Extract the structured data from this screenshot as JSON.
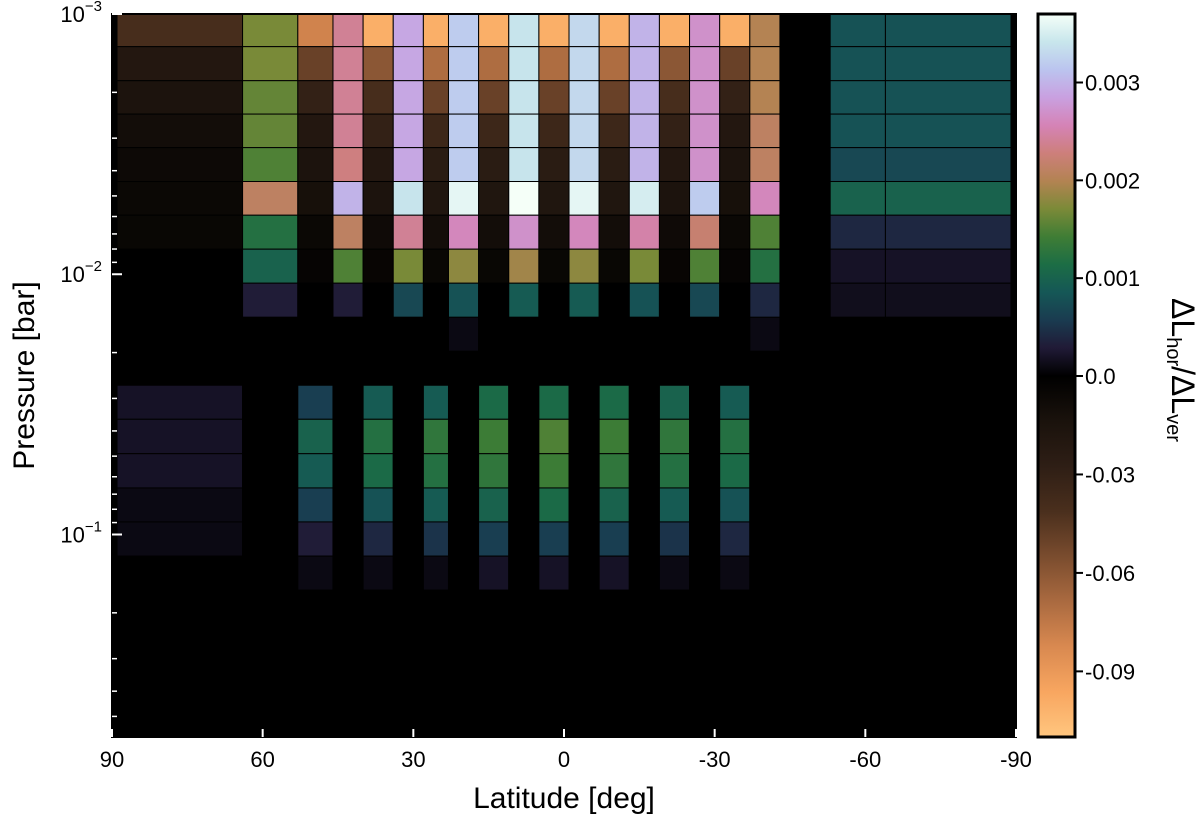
{
  "chart_data": {
    "type": "heatmap",
    "xlabel": "Latitude [deg]",
    "ylabel": "Pressure [bar]",
    "x_scale": "linear",
    "x_reversed": true,
    "xlim": [
      90,
      -90
    ],
    "xticks": [
      90,
      60,
      30,
      0,
      -30,
      -60,
      -90
    ],
    "xtick_labels": [
      "90",
      "60",
      "30",
      "0",
      "-30",
      "-60",
      "-90"
    ],
    "y_scale": "log",
    "y_inverted": true,
    "ylim": [
      0.001,
      0.6
    ],
    "yticks_major": [
      0.001,
      0.01,
      0.1
    ],
    "ytick_labels": [
      {
        "base": "10",
        "exp": "−3"
      },
      {
        "base": "10",
        "exp": "−2"
      },
      {
        "base": "10",
        "exp": "−1"
      }
    ],
    "pressure_rows": [
      0.00115,
      0.00155,
      0.0021,
      0.0028,
      0.0038,
      0.0051,
      0.0069,
      0.0093,
      0.0126,
      0.017,
      0.023,
      0.031,
      0.042,
      0.057,
      0.077,
      0.104,
      0.141,
      0.19,
      0.26,
      0.35,
      0.47
    ],
    "latitude_columns": [
      {
        "lat_from": 89,
        "lat_to": 64
      },
      {
        "lat_from": 64,
        "lat_to": 53
      },
      {
        "lat_from": 53,
        "lat_to": 46
      },
      {
        "lat_from": 46,
        "lat_to": 40
      },
      {
        "lat_from": 40,
        "lat_to": 34
      },
      {
        "lat_from": 34,
        "lat_to": 28
      },
      {
        "lat_from": 28,
        "lat_to": 23
      },
      {
        "lat_from": 23,
        "lat_to": 17
      },
      {
        "lat_from": 17,
        "lat_to": 11
      },
      {
        "lat_from": 11,
        "lat_to": 5
      },
      {
        "lat_from": 5,
        "lat_to": -1
      },
      {
        "lat_from": -1,
        "lat_to": -7
      },
      {
        "lat_from": -7,
        "lat_to": -13
      },
      {
        "lat_from": -13,
        "lat_to": -19
      },
      {
        "lat_from": -19,
        "lat_to": -25
      },
      {
        "lat_from": -25,
        "lat_to": -31
      },
      {
        "lat_from": -31,
        "lat_to": -37
      },
      {
        "lat_from": -37,
        "lat_to": -43
      },
      {
        "lat_from": -43,
        "lat_to": -53
      },
      {
        "lat_from": -53,
        "lat_to": -64
      },
      {
        "lat_from": -64,
        "lat_to": -89
      }
    ],
    "values": [
      [
        -0.04,
        0.0017,
        -0.08,
        0.0024,
        -0.1,
        0.0029,
        -0.1,
        0.0032,
        -0.1,
        0.0034,
        -0.1,
        0.0033,
        -0.1,
        0.003,
        -0.1,
        0.0027,
        -0.1,
        0.002,
        0.0,
        0.0008,
        0.0008
      ],
      [
        -0.02,
        0.0017,
        -0.05,
        0.0024,
        -0.06,
        0.0029,
        -0.07,
        0.0032,
        -0.07,
        0.0034,
        -0.07,
        0.0033,
        -0.07,
        0.003,
        -0.06,
        0.0027,
        -0.05,
        0.002,
        0.0,
        0.0008,
        0.0008
      ],
      [
        -0.015,
        0.0016,
        -0.03,
        0.0024,
        -0.04,
        0.0029,
        -0.05,
        0.0032,
        -0.05,
        0.0034,
        -0.05,
        0.0033,
        -0.05,
        0.003,
        -0.04,
        0.0027,
        -0.03,
        0.002,
        0.0,
        0.0008,
        0.0008
      ],
      [
        -0.01,
        0.0016,
        -0.02,
        0.0024,
        -0.03,
        0.0029,
        -0.035,
        0.0032,
        -0.035,
        0.0034,
        -0.035,
        0.0033,
        -0.035,
        0.003,
        -0.03,
        0.0027,
        -0.02,
        0.0021,
        0.0,
        0.0008,
        0.0008
      ],
      [
        -0.007,
        0.0015,
        -0.015,
        0.0023,
        -0.02,
        0.0029,
        -0.025,
        0.0032,
        -0.025,
        0.0034,
        -0.025,
        0.0033,
        -0.025,
        0.003,
        -0.02,
        0.0027,
        -0.015,
        0.0021,
        0.0,
        0.0007,
        0.0007
      ],
      [
        -0.006,
        0.0021,
        -0.012,
        0.003,
        -0.015,
        0.0034,
        -0.018,
        0.0036,
        -0.018,
        0.0037,
        -0.018,
        0.0036,
        -0.018,
        0.0035,
        -0.015,
        0.0032,
        -0.012,
        0.0026,
        0.0,
        0.001,
        0.001
      ],
      [
        -0.005,
        0.0012,
        -0.006,
        0.0021,
        -0.008,
        0.0024,
        -0.01,
        0.0026,
        -0.01,
        0.0027,
        -0.01,
        0.0026,
        -0.01,
        0.0025,
        -0.008,
        0.0022,
        -0.006,
        0.0015,
        0.0,
        0.0004,
        0.0004
      ],
      [
        0.0,
        0.001,
        -0.003,
        0.0015,
        -0.004,
        0.0017,
        -0.005,
        0.0018,
        -0.005,
        0.0019,
        -0.005,
        0.0018,
        -0.005,
        0.0017,
        -0.004,
        0.0015,
        -0.003,
        0.0012,
        0.0,
        0.0002,
        0.0002
      ],
      [
        0.0,
        0.0003,
        0.0,
        0.0003,
        0.0,
        0.0007,
        0.0,
        0.0008,
        0.0,
        0.0009,
        0.0,
        0.0009,
        0.0,
        0.0008,
        0.0,
        0.0007,
        0.0,
        0.0004,
        0.0,
        0.00015,
        0.00015
      ],
      [
        0.0,
        0.0,
        0.0,
        0.0,
        0.0,
        0.0,
        0.0,
        0.0001,
        0.0,
        0.0,
        0.0,
        0.0,
        0.0,
        0.0,
        0.0,
        0.0,
        0.0,
        0.0001,
        0.0,
        0.0,
        0.0
      ],
      [
        0.0,
        0.0,
        0.0,
        0.0,
        0.0,
        0.0,
        0.0,
        0.0,
        0.0,
        0.0,
        0.0,
        0.0,
        0.0,
        0.0,
        0.0,
        0.0,
        0.0,
        0.0,
        0.0,
        0.0,
        0.0
      ],
      [
        0.0002,
        0.0,
        0.0006,
        0.0,
        0.0009,
        0.0,
        0.0009,
        0.0,
        0.0011,
        0.0,
        0.0011,
        0.0,
        0.0011,
        0.0,
        0.001,
        0.0,
        0.0009,
        0.0,
        0.0,
        0.0,
        0.0
      ],
      [
        0.0002,
        0.0,
        0.001,
        0.0,
        0.0012,
        0.0,
        0.0013,
        0.0,
        0.0014,
        0.0,
        0.0015,
        0.0,
        0.0014,
        0.0,
        0.0013,
        0.0,
        0.0012,
        0.0,
        0.0,
        0.0,
        0.0
      ],
      [
        0.0002,
        0.0,
        0.0009,
        0.0,
        0.0011,
        0.0,
        0.0012,
        0.0,
        0.0013,
        0.0,
        0.0014,
        0.0,
        0.0013,
        0.0,
        0.0012,
        0.0,
        0.0011,
        0.0,
        0.0,
        0.0,
        0.0
      ],
      [
        0.0001,
        0.0,
        0.0006,
        0.0,
        0.0008,
        0.0,
        0.0009,
        0.0,
        0.001,
        0.0,
        0.0011,
        0.0,
        0.001,
        0.0,
        0.0009,
        0.0,
        0.0008,
        0.0,
        0.0,
        0.0,
        0.0
      ],
      [
        0.0001,
        0.0,
        0.0003,
        0.0,
        0.0004,
        0.0,
        0.0005,
        0.0,
        0.0006,
        0.0,
        0.0006,
        0.0,
        0.0006,
        0.0,
        0.0005,
        0.0,
        0.0004,
        0.0,
        0.0,
        0.0,
        0.0
      ],
      [
        0.0,
        0.0,
        0.0001,
        0.0,
        0.0001,
        0.0,
        0.0001,
        0.0,
        0.0002,
        0.0,
        0.0002,
        0.0,
        0.0002,
        0.0,
        0.0001,
        0.0,
        0.0001,
        0.0,
        0.0,
        0.0,
        0.0
      ],
      [
        0.0,
        0.0,
        0.0,
        0.0,
        0.0,
        0.0,
        0.0,
        0.0,
        0.0,
        0.0,
        0.0,
        0.0,
        0.0,
        0.0,
        0.0,
        0.0,
        0.0,
        0.0,
        0.0,
        0.0,
        0.0
      ],
      [
        0.0,
        0.0,
        0.0,
        0.0,
        0.0,
        0.0,
        0.0,
        0.0,
        0.0,
        0.0,
        0.0,
        0.0,
        0.0,
        0.0,
        0.0,
        0.0,
        0.0,
        0.0,
        0.0,
        0.0,
        0.0
      ],
      [
        0.0,
        0.0,
        0.0,
        0.0,
        0.0,
        0.0,
        0.0,
        0.0,
        0.0,
        0.0,
        0.0,
        0.0,
        0.0,
        0.0,
        0.0,
        0.0,
        0.0,
        0.0,
        0.0,
        0.0,
        0.0
      ],
      [
        0.0,
        0.0,
        0.0,
        0.0,
        0.0,
        0.0,
        0.0,
        0.0,
        0.0,
        0.0,
        0.0,
        0.0,
        0.0,
        0.0,
        0.0,
        0.0,
        0.0,
        0.0,
        0.0,
        0.0,
        0.0
      ]
    ],
    "colorbar": {
      "label": {
        "base": "ΔL",
        "num_sub": "hor",
        "sep": "/",
        "den_base": "ΔL",
        "den_sub": "ver"
      },
      "scale": "piecewise: negative branch -0.11..0, positive branch 0..0.0037",
      "neg_min": -0.11,
      "pos_max": 0.0037,
      "ticks": [
        {
          "value": 0.003,
          "label": "0.003"
        },
        {
          "value": 0.002,
          "label": "0.002"
        },
        {
          "value": 0.001,
          "label": "0.001"
        },
        {
          "value": 0.0,
          "label": "0.0"
        },
        {
          "value": -0.03,
          "label": "-0.03"
        },
        {
          "value": -0.06,
          "label": "-0.06"
        },
        {
          "value": -0.09,
          "label": "-0.09"
        }
      ],
      "pos_colors": [
        "#000000",
        "#201a36",
        "#1a3b50",
        "#155756",
        "#1c6d45",
        "#3f7d35",
        "#7b8a38",
        "#b38352",
        "#cd7f7b",
        "#d583b6",
        "#c9a0e0",
        "#bbc4ef",
        "#c8e6ec",
        "#f5fff8"
      ],
      "neg_colors": [
        "#000000",
        "#1a120c",
        "#2e1e15",
        "#4a2f1d",
        "#7a4c2e",
        "#aa6a40",
        "#d98950",
        "#f8a660",
        "#ffc67f"
      ]
    }
  }
}
